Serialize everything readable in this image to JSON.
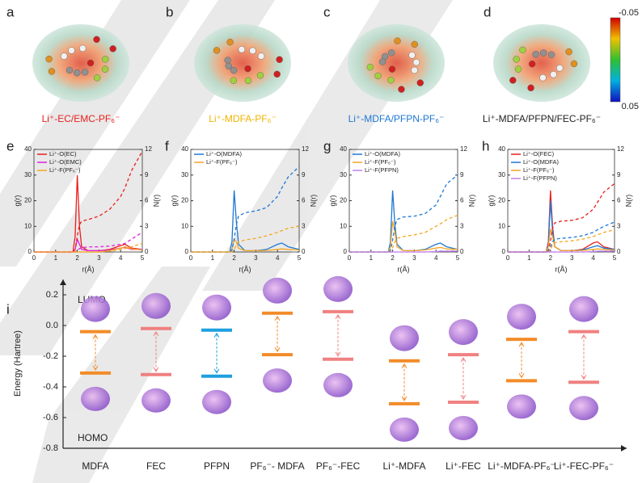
{
  "panels": [
    {
      "label": "a",
      "caption": "Li⁺-EC/EMC-PF₆⁻",
      "caption_color": "#e8201c"
    },
    {
      "label": "b",
      "caption": "Li⁺-MDFA-PF₆⁻",
      "caption_color": "#f0b400"
    },
    {
      "label": "c",
      "caption": "Li⁺-MDFA/PFPN-PF₆⁻",
      "caption_color": "#1f77d4"
    },
    {
      "label": "d",
      "caption": "Li⁺-MDFA/PFPN/FEC-PF₆⁻",
      "caption_color": "#222222"
    }
  ],
  "colorbar": {
    "ticks": [
      -0.05,
      0.05
    ]
  },
  "chart_data": [
    {
      "type": "line",
      "panel_label": "e",
      "ylabel": "g(r)",
      "y2label": "N(r)",
      "xlabel": "r(Å)",
      "x": [
        0,
        0.5,
        1,
        1.5,
        1.8,
        1.9,
        2,
        2.1,
        2.2,
        2.5,
        3,
        3.5,
        4,
        4.2,
        4.5,
        5
      ],
      "xlim": [
        0,
        5
      ],
      "xticks": [
        0,
        1,
        2,
        3,
        4,
        5
      ],
      "ylim": [
        0,
        40
      ],
      "yticks": [
        0,
        10,
        20,
        30,
        40
      ],
      "y2lim": [
        0,
        12
      ],
      "y2ticks": [
        0,
        3,
        6,
        9,
        12
      ],
      "series": [
        {
          "name": "Li⁺-O(EC)",
          "color": "#e8201c",
          "values": [
            0,
            0,
            0,
            0,
            0,
            6,
            30,
            10,
            2,
            0.5,
            0.5,
            1,
            2.5,
            3,
            1.5,
            1
          ]
        },
        {
          "name": "Li⁺-O(EMC)",
          "color": "#e020e0",
          "values": [
            0,
            0,
            0,
            0,
            0,
            1,
            5,
            3,
            1,
            0.5,
            0.5,
            0.8,
            1.5,
            1.8,
            1,
            1
          ]
        },
        {
          "name": "Li⁺-F(PF₆⁻)",
          "color": "#f5a623",
          "values": [
            0,
            0,
            0,
            0,
            0,
            0,
            0,
            0,
            0,
            0,
            0,
            0.5,
            1.5,
            2,
            1.2,
            0.8
          ]
        },
        {
          "color": "#e8201c",
          "axis": "y2",
          "dashed": true,
          "values": [
            0,
            0,
            0,
            0,
            0,
            0.3,
            1.8,
            3.2,
            3.6,
            3.8,
            4.2,
            5,
            6.5,
            7.5,
            9.5,
            11.8
          ]
        },
        {
          "color": "#e020e0",
          "axis": "y2",
          "dashed": true,
          "values": [
            0,
            0,
            0,
            0,
            0,
            0,
            0.2,
            0.4,
            0.5,
            0.6,
            0.6,
            0.7,
            0.9,
            1,
            1.5,
            2.3
          ]
        },
        {
          "color": "#f5a623",
          "axis": "y2",
          "dashed": true,
          "values": [
            0,
            0,
            0,
            0,
            0,
            0,
            0,
            0,
            0,
            0,
            0,
            0.1,
            0.3,
            0.4,
            0.6,
            1
          ]
        }
      ]
    },
    {
      "type": "line",
      "panel_label": "f",
      "ylabel": "g(r)",
      "y2label": "N(r)",
      "xlabel": "r(Å)",
      "x": [
        0,
        0.5,
        1,
        1.5,
        1.8,
        1.9,
        2,
        2.1,
        2.2,
        2.5,
        3,
        3.5,
        4,
        4.2,
        4.5,
        5
      ],
      "xlim": [
        0,
        5
      ],
      "xticks": [
        0,
        1,
        2,
        3,
        4,
        5
      ],
      "ylim": [
        0,
        40
      ],
      "yticks": [
        0,
        10,
        20,
        30,
        40
      ],
      "y2lim": [
        0,
        12
      ],
      "y2ticks": [
        0,
        3,
        6,
        9,
        12
      ],
      "series": [
        {
          "name": "Li⁺-O(MDFA)",
          "color": "#1f77d4",
          "values": [
            0,
            0,
            0,
            0,
            0,
            4,
            24,
            12,
            3,
            0.5,
            0.5,
            1,
            3,
            3.5,
            2,
            1
          ]
        },
        {
          "name": "Li⁺-F(PF₆⁻)",
          "color": "#f5a623",
          "values": [
            0,
            0,
            0,
            0,
            0,
            1,
            5,
            4,
            1.5,
            0.5,
            0.5,
            0.6,
            1,
            1.2,
            1,
            0.8
          ]
        },
        {
          "color": "#1f77d4",
          "axis": "y2",
          "dashed": true,
          "values": [
            0,
            0,
            0,
            0,
            0,
            0.2,
            1.5,
            3.2,
            4.2,
            4.6,
            4.8,
            5.2,
            6.5,
            7.5,
            8.8,
            10
          ]
        },
        {
          "color": "#f5a623",
          "axis": "y2",
          "dashed": true,
          "values": [
            0,
            0,
            0,
            0,
            0,
            0,
            0.3,
            0.8,
            1.2,
            1.4,
            1.6,
            1.9,
            2.3,
            2.5,
            2.8,
            3
          ]
        }
      ]
    },
    {
      "type": "line",
      "panel_label": "g",
      "ylabel": "g(r)",
      "y2label": "N(r)",
      "xlabel": "r(Å)",
      "x": [
        0,
        0.5,
        1,
        1.5,
        1.8,
        1.9,
        2,
        2.1,
        2.2,
        2.5,
        3,
        3.5,
        4,
        4.2,
        4.5,
        5
      ],
      "xlim": [
        0,
        5
      ],
      "xticks": [
        0,
        1,
        2,
        3,
        4,
        5
      ],
      "ylim": [
        0,
        40
      ],
      "yticks": [
        0,
        10,
        20,
        30,
        40
      ],
      "y2lim": [
        0,
        12
      ],
      "y2ticks": [
        0,
        3,
        6,
        9,
        12
      ],
      "series": [
        {
          "name": "Li⁺-O(MDFA)",
          "color": "#1f77d4",
          "values": [
            0,
            0,
            0,
            0,
            0,
            4,
            24,
            11,
            3,
            0.5,
            0.5,
            1,
            3,
            3.5,
            2,
            1
          ]
        },
        {
          "name": "Li⁺-F(PF₆⁻)",
          "color": "#f5a623",
          "values": [
            0,
            0,
            0,
            0,
            0,
            2,
            12,
            8,
            2,
            0.5,
            0.5,
            0.8,
            1.5,
            1.8,
            1.2,
            1
          ]
        },
        {
          "name": "Li⁺-F(PFPN)",
          "color": "#c080f0",
          "values": [
            0,
            0,
            0,
            0,
            0,
            0,
            0,
            0,
            0,
            0,
            0,
            0,
            0.2,
            0.3,
            0.3,
            0.3
          ]
        },
        {
          "color": "#1f77d4",
          "axis": "y2",
          "dashed": true,
          "values": [
            0,
            0,
            0,
            0,
            0,
            0.2,
            1.4,
            3,
            3.8,
            4.1,
            4.2,
            4.5,
            5.5,
            6.5,
            8,
            9
          ]
        },
        {
          "color": "#f5a623",
          "axis": "y2",
          "dashed": true,
          "values": [
            0,
            0,
            0,
            0,
            0,
            0,
            0.5,
            1.2,
            1.6,
            1.8,
            2,
            2.3,
            3,
            3.3,
            3.8,
            4.3
          ]
        },
        {
          "color": "#c080f0",
          "axis": "y2",
          "dashed": true,
          "values": [
            0,
            0,
            0,
            0,
            0,
            0,
            0,
            0,
            0,
            0,
            0,
            0,
            0.05,
            0.1,
            0.1,
            0.15
          ]
        }
      ]
    },
    {
      "type": "line",
      "panel_label": "h",
      "ylabel": "g(r)",
      "y2label": "N(r)",
      "xlabel": "r(Å)",
      "x": [
        0,
        0.5,
        1,
        1.5,
        1.8,
        1.9,
        2,
        2.1,
        2.2,
        2.5,
        3,
        3.5,
        4,
        4.2,
        4.5,
        5
      ],
      "xlim": [
        0,
        5
      ],
      "xticks": [
        0,
        1,
        2,
        3,
        4,
        5
      ],
      "ylim": [
        0,
        40
      ],
      "yticks": [
        0,
        10,
        20,
        30,
        40
      ],
      "y2lim": [
        0,
        12
      ],
      "y2ticks": [
        0,
        3,
        6,
        9,
        12
      ],
      "series": [
        {
          "name": "Li⁺-O(FEC)",
          "color": "#e8201c",
          "values": [
            0,
            0,
            0,
            0,
            0,
            4,
            24,
            10,
            2,
            0.5,
            0.5,
            1,
            3.5,
            4,
            2,
            1
          ]
        },
        {
          "name": "Li⁺-O(MDFA)",
          "color": "#1f77d4",
          "values": [
            0,
            0,
            0,
            0,
            0,
            3,
            20,
            8,
            2,
            0.5,
            0.5,
            0.8,
            2,
            2.5,
            1.5,
            1
          ]
        },
        {
          "name": "Li⁺-F(PF₆⁻)",
          "color": "#f5a623",
          "values": [
            0,
            0,
            0,
            0,
            0,
            2,
            9,
            6,
            2,
            0.5,
            0.5,
            0.6,
            1,
            1.2,
            1,
            0.8
          ]
        },
        {
          "name": "Li⁺-F(PFPN)",
          "color": "#c080f0",
          "values": [
            0,
            0,
            0,
            0,
            0,
            0,
            0,
            0,
            0,
            0,
            0,
            0,
            0.2,
            0.3,
            0.3,
            0.3
          ]
        },
        {
          "color": "#e8201c",
          "axis": "y2",
          "dashed": true,
          "values": [
            0,
            0,
            0,
            0,
            0,
            0.2,
            1.2,
            2.8,
            3.4,
            3.6,
            3.7,
            4,
            5,
            5.8,
            7,
            8
          ]
        },
        {
          "color": "#1f77d4",
          "axis": "y2",
          "dashed": true,
          "values": [
            0,
            0,
            0,
            0,
            0,
            0.1,
            0.6,
            1.2,
            1.5,
            1.6,
            1.7,
            1.9,
            2.3,
            2.6,
            3,
            3.5
          ]
        },
        {
          "color": "#f5a623",
          "axis": "y2",
          "dashed": true,
          "values": [
            0,
            0,
            0,
            0,
            0,
            0,
            0.3,
            0.8,
            1.1,
            1.2,
            1.3,
            1.5,
            1.8,
            2,
            2.3,
            2.6
          ]
        },
        {
          "color": "#c080f0",
          "axis": "y2",
          "dashed": true,
          "values": [
            0,
            0,
            0,
            0,
            0,
            0,
            0,
            0,
            0,
            0,
            0,
            0,
            0.05,
            0.1,
            0.1,
            0.15
          ]
        }
      ]
    },
    {
      "type": "level",
      "panel_label": "i",
      "ylabel": "Energy (Hartree)",
      "top_label": "LUMO",
      "bottom_label": "HOMO",
      "categories": [
        "MDFA",
        "FEC",
        "PFPN",
        "PF₆⁻- MDFA",
        "PF₆⁻-FEC",
        "Li⁺-MDFA",
        "Li⁺-FEC",
        "Li⁺-MDFA-PF₆⁻",
        "Li⁺-FEC-PF₆⁻"
      ],
      "colors": [
        "#f28c28",
        "#f08080",
        "#1ea0e0",
        "#f28c28",
        "#f08080",
        "#f28c28",
        "#f08080",
        "#f28c28",
        "#f08080"
      ],
      "ylim": [
        -0.8,
        0.3
      ],
      "yticks": [
        0.2,
        {
          "value": 0,
          "label": "0.0"
        },
        -0.2,
        -0.4,
        -0.6,
        -0.8
      ],
      "series": [
        {
          "values": [
            -0.04,
            -0.02,
            -0.03,
            0.08,
            0.09,
            -0.23,
            -0.19,
            -0.09,
            -0.04
          ]
        },
        {
          "values": [
            -0.31,
            -0.32,
            -0.33,
            -0.19,
            -0.22,
            -0.51,
            -0.5,
            -0.36,
            -0.37
          ]
        }
      ]
    }
  ]
}
